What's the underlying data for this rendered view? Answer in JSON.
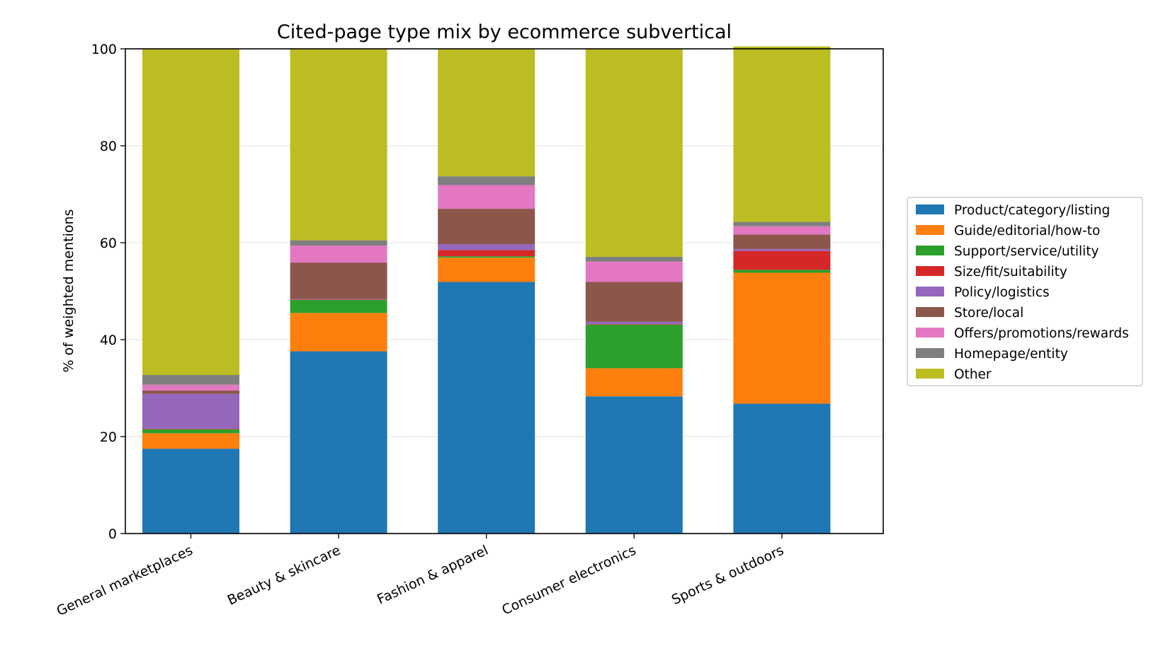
{
  "chart_data": {
    "type": "bar",
    "stacked": true,
    "title": "Cited-page type mix by ecommerce subvertical",
    "xlabel": "",
    "ylabel": "% of weighted mentions",
    "ylim": [
      0,
      100
    ],
    "yticks": [
      0,
      20,
      40,
      60,
      80,
      100
    ],
    "grid": "horizontal",
    "legend_position": "right",
    "categories": [
      "General marketplaces",
      "Beauty & skincare",
      "Fashion & apparel",
      "Consumer electronics",
      "Sports & outdoors"
    ],
    "series": [
      {
        "name": "Product/category/listing",
        "color": "#1f77b4",
        "values": [
          17.5,
          37.6,
          51.9,
          28.3,
          26.8
        ]
      },
      {
        "name": "Guide/editorial/how-to",
        "color": "#ff7f0e",
        "values": [
          3.2,
          7.9,
          5.0,
          5.8,
          27.0
        ]
      },
      {
        "name": "Support/service/utility",
        "color": "#2ca02c",
        "values": [
          0.8,
          2.7,
          0.3,
          9.0,
          0.6
        ]
      },
      {
        "name": "Size/fit/suitability",
        "color": "#d62728",
        "values": [
          0.1,
          0.1,
          1.3,
          0.1,
          3.9
        ]
      },
      {
        "name": "Policy/logistics",
        "color": "#9467bd",
        "values": [
          7.2,
          0.1,
          1.2,
          0.5,
          0.4
        ]
      },
      {
        "name": "Store/local",
        "color": "#8c564b",
        "values": [
          0.7,
          7.5,
          7.3,
          8.2,
          3.0
        ]
      },
      {
        "name": "Offers/promotions/rewards",
        "color": "#e377c2",
        "values": [
          1.2,
          3.5,
          4.9,
          4.2,
          1.7
        ]
      },
      {
        "name": "Homepage/entity",
        "color": "#7f7f7f",
        "values": [
          2.0,
          1.1,
          1.8,
          1.0,
          0.9
        ]
      },
      {
        "name": "Other",
        "color": "#bcbd22",
        "values": [
          67.3,
          39.5,
          26.3,
          42.9,
          36.2
        ]
      }
    ]
  }
}
